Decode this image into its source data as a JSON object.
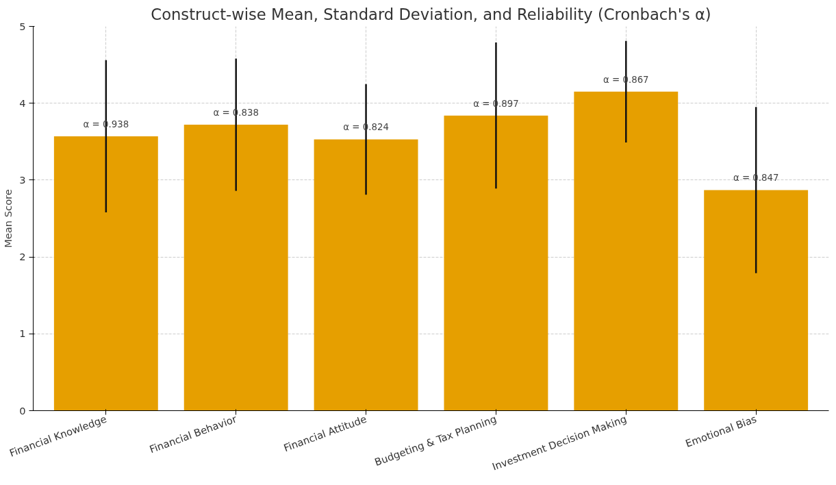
{
  "chart_data": {
    "type": "bar",
    "title": "Construct-wise Mean, Standard Deviation, and Reliability (Cronbach's α)",
    "ylabel": "Mean Score",
    "categories": [
      "Financial Knowledge",
      "Financial Behavior",
      "Financial Attitude",
      "Budgeting & Tax Planning",
      "Investment Decision Making",
      "Emotional Bias"
    ],
    "values": [
      3.57,
      3.72,
      3.53,
      3.84,
      4.15,
      2.87
    ],
    "errors": [
      0.99,
      0.86,
      0.72,
      0.95,
      0.66,
      1.08
    ],
    "color": "#e69f00",
    "ylim": [
      0,
      5
    ],
    "yticks": [
      0,
      1,
      2,
      3,
      4,
      5
    ],
    "grid": true,
    "annotations": [
      {
        "text": "α = 0.938",
        "x": "Financial Knowledge",
        "y": 3.57
      },
      {
        "text": "α = 0.838",
        "x": "Financial Behavior",
        "y": 3.72
      },
      {
        "text": "α = 0.824",
        "x": "Financial Attitude",
        "y": 3.53
      },
      {
        "text": "α = 0.897",
        "x": "Budgeting & Tax Planning",
        "y": 3.84
      },
      {
        "text": "α = 0.867",
        "x": "Investment Decision Making",
        "y": 4.15
      },
      {
        "text": "α = 0.847",
        "x": "Emotional Bias",
        "y": 2.87
      }
    ]
  }
}
